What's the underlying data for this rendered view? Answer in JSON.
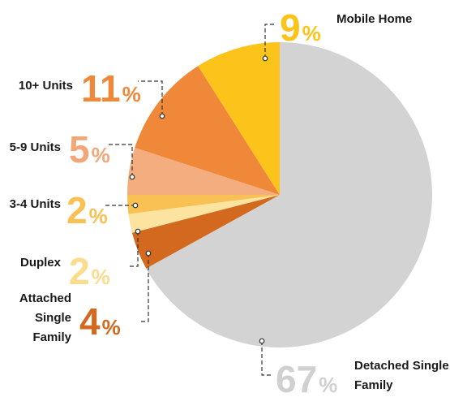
{
  "chart_data": {
    "type": "pie",
    "categories": [
      "Detached Single Family",
      "Attached Single Family",
      "Duplex",
      "3-4 Units",
      "5-9 Units",
      "10+ Units",
      "Mobile Home"
    ],
    "values": [
      67,
      4,
      2,
      2,
      5,
      11,
      9
    ],
    "unit": "%",
    "colors": [
      "#d3d3d3",
      "#d2691e",
      "#fde3a0",
      "#f9c053",
      "#f4ad7e",
      "#f0883a",
      "#fcc41a"
    ],
    "label_colors": [
      "#d0d0d0",
      "#d2691e",
      "#fbdc8c",
      "#f9c053",
      "#f2a779",
      "#f0883a",
      "#fcc41a"
    ]
  }
}
